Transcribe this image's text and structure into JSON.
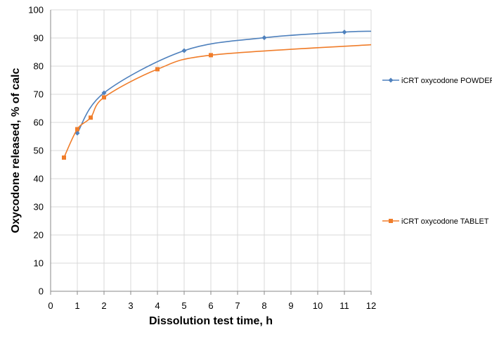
{
  "chart_data": {
    "type": "line",
    "title": "",
    "xlabel": "Dissolution test time, h",
    "ylabel": "Oxycodone released, % of calc",
    "xlim": [
      0,
      12
    ],
    "ylim": [
      0,
      100
    ],
    "x_ticks": [
      "0",
      "1",
      "2",
      "3",
      "4",
      "5",
      "6",
      "7",
      "8",
      "9",
      "10",
      "11",
      "12"
    ],
    "y_ticks": [
      "0",
      "10",
      "20",
      "30",
      "40",
      "50",
      "60",
      "70",
      "80",
      "90",
      "100"
    ],
    "grid": "vertical and horizontal",
    "legend_placement": "right",
    "series": [
      {
        "name": "iCRT oxycodone POWDER",
        "color": "#4F81BD",
        "marker": "diamond",
        "points": [
          {
            "x": 1,
            "y": 56.2
          },
          {
            "x": 2,
            "y": 70.5
          },
          {
            "x": 5,
            "y": 85.5
          },
          {
            "x": 8,
            "y": 90.1
          },
          {
            "x": 11,
            "y": 92.1
          },
          {
            "x": 12,
            "y": 92.4
          }
        ]
      },
      {
        "name": "iCRT oxycodone TABLET",
        "color": "#F07D2A",
        "marker": "square",
        "points": [
          {
            "x": 0.5,
            "y": 47.5
          },
          {
            "x": 1,
            "y": 57.6
          },
          {
            "x": 1.5,
            "y": 61.7
          },
          {
            "x": 2,
            "y": 68.9
          },
          {
            "x": 4,
            "y": 78.9
          },
          {
            "x": 6,
            "y": 83.9
          },
          {
            "x": 12,
            "y": 87.6
          }
        ]
      }
    ]
  }
}
